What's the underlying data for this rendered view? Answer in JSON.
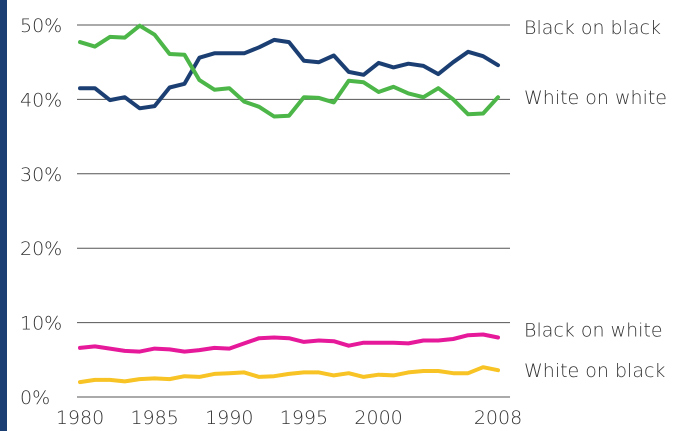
{
  "chart_data": {
    "type": "line",
    "title": "",
    "xlabel": "",
    "ylabel": "",
    "ylim": [
      0,
      50
    ],
    "y_ticks": [
      "0%",
      "10%",
      "20%",
      "30%",
      "40%",
      "50%"
    ],
    "y_tick_values": [
      0,
      10,
      20,
      30,
      40,
      50
    ],
    "x_ticks": [
      "1980",
      "1985",
      "1990",
      "1995",
      "2000",
      "2008"
    ],
    "x_tick_values": [
      1980,
      1985,
      1990,
      1995,
      2000,
      2008
    ],
    "grid": true,
    "legend": "labels at right end of each line",
    "x": [
      1980,
      1981,
      1982,
      1983,
      1984,
      1985,
      1986,
      1987,
      1988,
      1989,
      1990,
      1991,
      1992,
      1993,
      1994,
      1995,
      1996,
      1997,
      1998,
      1999,
      2000,
      2001,
      2002,
      2003,
      2004,
      2005,
      2006,
      2007,
      2008
    ],
    "series": [
      {
        "name": "Black on black",
        "color": "#1c3f73",
        "values": [
          41.5,
          41.5,
          39.9,
          40.3,
          38.8,
          39.1,
          41.6,
          42.1,
          45.6,
          46.2,
          46.2,
          46.2,
          47.0,
          48.0,
          47.7,
          45.2,
          45.0,
          45.9,
          43.7,
          43.3,
          44.9,
          44.3,
          44.8,
          44.5,
          43.4,
          45.0,
          46.4,
          45.8,
          44.6
        ]
      },
      {
        "name": "White on white",
        "color": "#4cb648",
        "values": [
          47.7,
          47.1,
          48.4,
          48.3,
          49.9,
          48.7,
          46.1,
          46.0,
          42.6,
          41.3,
          41.5,
          39.7,
          39.0,
          37.7,
          37.8,
          40.3,
          40.2,
          39.6,
          42.5,
          42.3,
          41.0,
          41.7,
          40.8,
          40.3,
          41.5,
          40.0,
          38.0,
          38.1,
          40.3
        ]
      },
      {
        "name": "Black on white",
        "color": "#e6199b",
        "values": [
          6.6,
          6.8,
          6.5,
          6.2,
          6.1,
          6.5,
          6.4,
          6.1,
          6.3,
          6.6,
          6.5,
          7.2,
          7.9,
          8.0,
          7.9,
          7.4,
          7.6,
          7.5,
          6.9,
          7.3,
          7.3,
          7.3,
          7.2,
          7.6,
          7.6,
          7.8,
          8.3,
          8.4,
          8.0
        ]
      },
      {
        "name": "White on black",
        "color": "#f7c325",
        "values": [
          2.0,
          2.3,
          2.3,
          2.1,
          2.4,
          2.5,
          2.4,
          2.8,
          2.7,
          3.1,
          3.2,
          3.3,
          2.7,
          2.8,
          3.1,
          3.3,
          3.3,
          2.9,
          3.2,
          2.7,
          3.0,
          2.9,
          3.3,
          3.5,
          3.5,
          3.2,
          3.2,
          4.0,
          3.6
        ]
      }
    ]
  }
}
